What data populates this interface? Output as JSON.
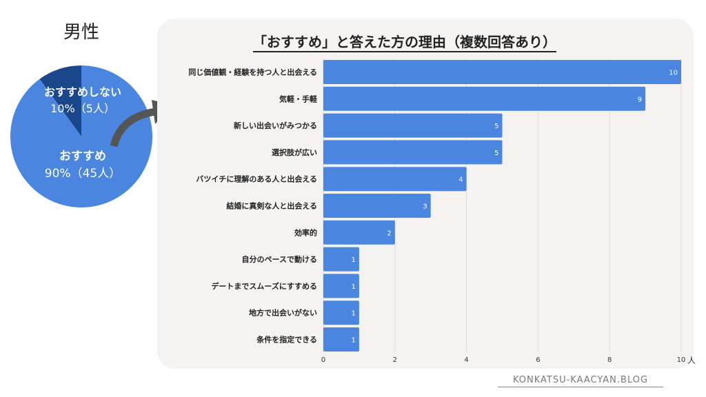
{
  "gender_label": "男性",
  "pie": {
    "slices": [
      {
        "label": "おすすめしない",
        "value_text": "10%（5人）",
        "percent": 10,
        "color": "#1a4789"
      },
      {
        "label": "おすすめ",
        "value_text": "90%（45人）",
        "percent": 90,
        "color": "#4a86e0"
      }
    ]
  },
  "chart_data": {
    "type": "bar",
    "orientation": "horizontal",
    "title": "「おすすめ」と答えた方の理由（複数回答あり）",
    "categories": [
      "同じ価値観・経験を持つ人と出会える",
      "気軽・手軽",
      "新しい出会いがみつかる",
      "選択肢が広い",
      "バツイチに理解のある人と出会える",
      "結婚に真剣な人と出会える",
      "効率的",
      "自分のペースで動ける",
      "デートまでスムーズにすすめる",
      "地方で出会いがない",
      "条件を指定できる"
    ],
    "values": [
      10,
      9,
      5,
      5,
      4,
      3,
      2,
      1,
      1,
      1,
      1
    ],
    "xlabel": "人",
    "xlim": [
      0,
      10
    ],
    "xticks": [
      0,
      2,
      4,
      6,
      8,
      10
    ],
    "grid": true,
    "bar_color": "#4a86e0"
  },
  "footer": "KONKATSU-KAACYAN.BLOG"
}
